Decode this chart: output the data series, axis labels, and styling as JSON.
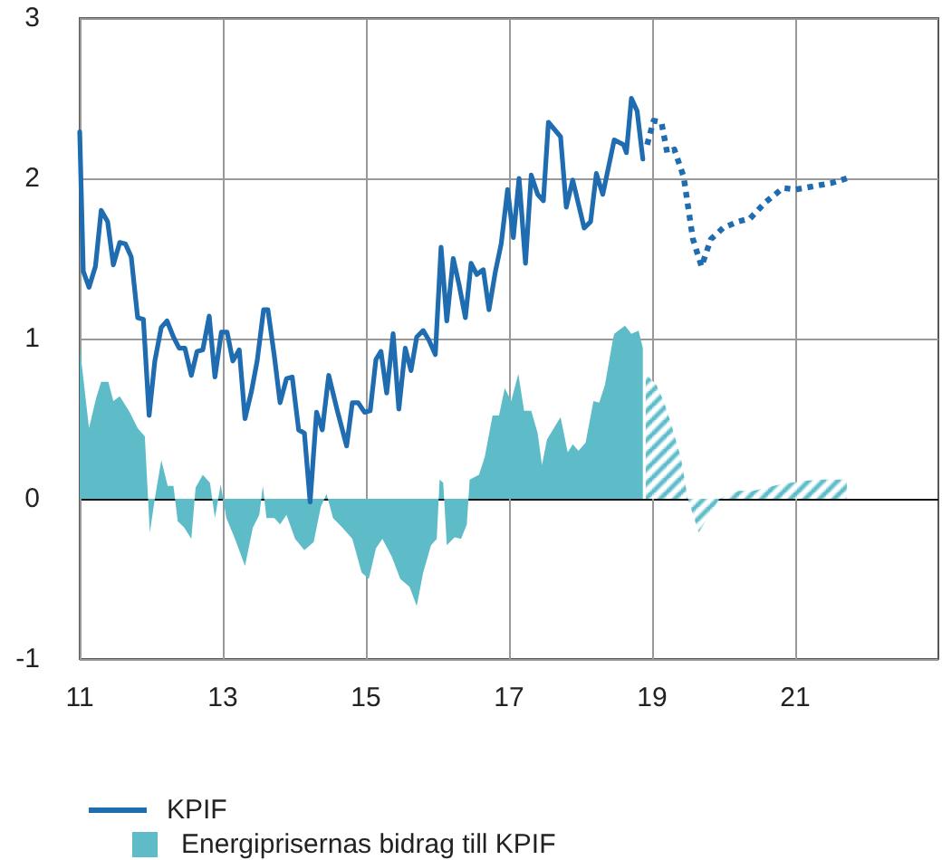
{
  "chart_data": {
    "type": "line",
    "xlim": [
      2011,
      2023
    ],
    "ylim": [
      -1,
      3
    ],
    "xticks": [
      {
        "value": 2011,
        "label": "11"
      },
      {
        "value": 2013,
        "label": "13"
      },
      {
        "value": 2015,
        "label": "15"
      },
      {
        "value": 2017,
        "label": "17"
      },
      {
        "value": 2019,
        "label": "19"
      },
      {
        "value": 2021,
        "label": "21"
      }
    ],
    "yticks": [
      -1,
      0,
      1,
      2,
      3
    ],
    "grid": true,
    "legend": "bottom left",
    "series": [
      {
        "name": "Energiprisernas bidrag till KPIF",
        "type": "area",
        "color": "#5dbcc8",
        "line_style": "solid",
        "x": [
          2011.0,
          2011.13,
          2011.23,
          2011.3,
          2011.4,
          2011.47,
          2011.56,
          2011.7,
          2011.81,
          2011.91,
          2011.98,
          2012.06,
          2012.14,
          2012.23,
          2012.31,
          2012.37,
          2012.46,
          2012.56,
          2012.62,
          2012.72,
          2012.82,
          2012.89,
          2012.97,
          2013.05,
          2013.17,
          2013.31,
          2013.42,
          2013.51,
          2013.56,
          2013.61,
          2013.72,
          2013.8,
          2013.89,
          2014.01,
          2014.14,
          2014.27,
          2014.37,
          2014.45,
          2014.54,
          2014.67,
          2014.81,
          2014.94,
          2015.04,
          2015.14,
          2015.23,
          2015.36,
          2015.48,
          2015.61,
          2015.71,
          2015.8,
          2015.91,
          2015.99,
          2016.03,
          2016.08,
          2016.13,
          2016.24,
          2016.33,
          2016.41,
          2016.45,
          2016.58,
          2016.66,
          2016.77,
          2016.86,
          2016.94,
          2017.03,
          2017.13,
          2017.21,
          2017.31,
          2017.4,
          2017.46,
          2017.53,
          2017.72,
          2017.82,
          2017.89,
          2017.97,
          2018.07,
          2018.18,
          2018.26,
          2018.34,
          2018.45,
          2018.47,
          2018.62,
          2018.71,
          2018.81,
          2018.87
        ],
        "values": [
          0.95,
          0.44,
          0.63,
          0.73,
          0.73,
          0.61,
          0.64,
          0.54,
          0.44,
          0.39,
          -0.21,
          0.03,
          0.24,
          0.08,
          0.08,
          -0.14,
          -0.18,
          -0.25,
          0.07,
          0.15,
          0.1,
          -0.12,
          0.09,
          -0.12,
          -0.25,
          -0.42,
          -0.18,
          -0.1,
          0.08,
          -0.12,
          -0.12,
          -0.16,
          -0.1,
          -0.25,
          -0.32,
          -0.27,
          -0.05,
          0.03,
          -0.12,
          -0.18,
          -0.25,
          -0.46,
          -0.5,
          -0.31,
          -0.25,
          -0.36,
          -0.5,
          -0.55,
          -0.67,
          -0.46,
          -0.29,
          -0.25,
          0.12,
          0.1,
          -0.29,
          -0.24,
          -0.25,
          -0.16,
          0.12,
          0.15,
          0.26,
          0.52,
          0.52,
          0.69,
          0.61,
          0.78,
          0.55,
          0.55,
          0.41,
          0.21,
          0.37,
          0.51,
          0.29,
          0.34,
          0.3,
          0.35,
          0.61,
          0.6,
          0.71,
          0.99,
          1.03,
          1.08,
          1.03,
          1.05,
          0.94
        ]
      },
      {
        "type": "area",
        "color": "#5dbcc8",
        "line_style": "dashed",
        "x": [
          2018.91,
          2019.06,
          2019.16,
          2019.25,
          2019.4,
          2019.5,
          2019.65,
          2019.78,
          2019.94,
          2020.2,
          2020.41,
          2020.79,
          2021.08,
          2021.33,
          2021.72
        ],
        "values": [
          0.78,
          0.71,
          0.61,
          0.49,
          0.26,
          0.0,
          -0.21,
          -0.12,
          0.0,
          0.05,
          0.05,
          0.09,
          0.11,
          0.12,
          0.12
        ]
      },
      {
        "name": "KPIF",
        "color": "#1f6cb0",
        "line_style": "solid",
        "x": [
          2011.0,
          2011.05,
          2011.13,
          2011.22,
          2011.3,
          2011.39,
          2011.47,
          2011.56,
          2011.64,
          2011.72,
          2011.81,
          2011.89,
          2011.97,
          2012.05,
          2012.14,
          2012.22,
          2012.31,
          2012.39,
          2012.47,
          2012.56,
          2012.64,
          2012.72,
          2012.81,
          2012.89,
          2012.98,
          2013.06,
          2013.14,
          2013.23,
          2013.31,
          2013.4,
          2013.48,
          2013.57,
          2013.63,
          2013.72,
          2013.8,
          2013.89,
          2013.97,
          2014.06,
          2014.14,
          2014.22,
          2014.31,
          2014.39,
          2014.48,
          2014.6,
          2014.73,
          2014.81,
          2014.89,
          2014.98,
          2015.06,
          2015.14,
          2015.21,
          2015.29,
          2015.38,
          2015.46,
          2015.55,
          2015.63,
          2015.71,
          2015.8,
          2015.88,
          2015.97,
          2016.05,
          2016.13,
          2016.22,
          2016.3,
          2016.39,
          2016.47,
          2016.55,
          2016.64,
          2016.72,
          2016.81,
          2016.89,
          2016.98,
          2017.06,
          2017.14,
          2017.23,
          2017.31,
          2017.4,
          2017.48,
          2017.55,
          2017.72,
          2017.8,
          2017.89,
          2017.97,
          2018.05,
          2018.14,
          2018.22,
          2018.31,
          2018.47,
          2018.6,
          2018.64,
          2018.71,
          2018.79,
          2018.87
        ],
        "values": [
          2.29,
          1.42,
          1.32,
          1.45,
          1.8,
          1.73,
          1.46,
          1.6,
          1.59,
          1.51,
          1.13,
          1.12,
          0.52,
          0.86,
          1.07,
          1.11,
          1.01,
          0.94,
          0.94,
          0.77,
          0.92,
          0.93,
          1.14,
          0.76,
          1.04,
          1.04,
          0.86,
          0.93,
          0.5,
          0.67,
          0.86,
          1.18,
          1.18,
          0.89,
          0.6,
          0.75,
          0.76,
          0.43,
          0.41,
          -0.02,
          0.54,
          0.43,
          0.77,
          0.55,
          0.33,
          0.6,
          0.6,
          0.54,
          0.55,
          0.87,
          0.92,
          0.66,
          1.03,
          0.56,
          0.94,
          0.8,
          1.01,
          1.05,
          0.99,
          0.9,
          1.57,
          1.11,
          1.5,
          1.34,
          1.13,
          1.47,
          1.4,
          1.43,
          1.18,
          1.42,
          1.59,
          1.93,
          1.63,
          2.0,
          1.47,
          2.02,
          1.9,
          1.86,
          2.35,
          2.26,
          1.82,
          1.99,
          1.84,
          1.69,
          1.73,
          2.03,
          1.9,
          2.24,
          2.21,
          2.16,
          2.5,
          2.42,
          2.12
        ]
      },
      {
        "color": "#1f6cb0",
        "line_style": "dotted",
        "x": [
          2018.93,
          2019.02,
          2019.13,
          2019.21,
          2019.31,
          2019.44,
          2019.57,
          2019.69,
          2019.82,
          2019.99,
          2020.2,
          2020.37,
          2020.58,
          2020.83,
          2021.0,
          2021.25,
          2021.5,
          2021.72
        ],
        "values": [
          2.21,
          2.36,
          2.35,
          2.16,
          2.18,
          2.01,
          1.62,
          1.45,
          1.62,
          1.69,
          1.73,
          1.75,
          1.85,
          1.94,
          1.93,
          1.95,
          1.97,
          2.0
        ]
      }
    ]
  }
}
